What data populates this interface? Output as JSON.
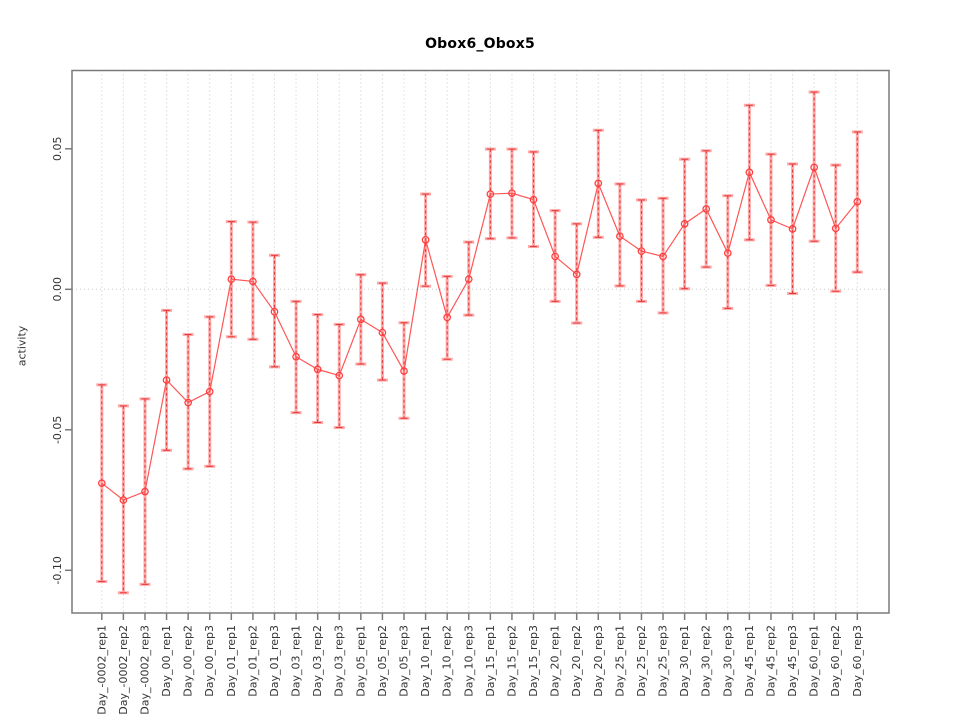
{
  "title": "Obox6_Obox5",
  "chart_data": {
    "type": "scatter",
    "title": "Obox6_Obox5",
    "xlabel": "",
    "ylabel": "activity",
    "legend": "none",
    "grid": "vertical dotted line per category; horizontal dotted line at 0 only",
    "ylim": [
      -0.115,
      0.078
    ],
    "y_ticks": [
      0.05,
      0.0,
      -0.05,
      -0.1
    ],
    "y_tick_labels": [
      "0.05",
      "0.00",
      "-0.05",
      "-0.10"
    ],
    "categories": [
      "Day_-0002_rep1",
      "Day_-0002_rep2",
      "Day_-0002_rep3",
      "Day_00_rep1",
      "Day_00_rep2",
      "Day_00_rep3",
      "Day_01_rep1",
      "Day_01_rep2",
      "Day_01_rep3",
      "Day_03_rep1",
      "Day_03_rep2",
      "Day_03_rep3",
      "Day_05_rep1",
      "Day_05_rep2",
      "Day_05_rep3",
      "Day_10_rep1",
      "Day_10_rep2",
      "Day_10_rep3",
      "Day_15_rep1",
      "Day_15_rep2",
      "Day_15_rep3",
      "Day_20_rep1",
      "Day_20_rep2",
      "Day_20_rep3",
      "Day_25_rep1",
      "Day_25_rep2",
      "Day_25_rep3",
      "Day_30_rep1",
      "Day_30_rep2",
      "Day_30_rep3",
      "Day_45_rep1",
      "Day_45_rep2",
      "Day_45_rep3",
      "Day_60_rep1",
      "Day_60_rep2",
      "Day_60_rep3"
    ],
    "series": [
      {
        "name": "activity",
        "values": [
          -0.069,
          -0.075,
          -0.072,
          -0.0323,
          -0.0403,
          -0.0364,
          0.0036,
          0.0028,
          -0.008,
          -0.024,
          -0.0285,
          -0.0307,
          -0.0107,
          -0.0154,
          -0.0291,
          0.0176,
          -0.01,
          0.0036,
          0.0339,
          0.0342,
          0.0319,
          0.0117,
          0.0053,
          0.0377,
          0.0189,
          0.0136,
          0.0117,
          0.0233,
          0.0286,
          0.0129,
          0.0416,
          0.0247,
          0.0215,
          0.0434,
          0.0217,
          0.0312
        ],
        "error_lower": [
          -0.104,
          -0.108,
          -0.105,
          -0.0573,
          -0.0639,
          -0.063,
          -0.0169,
          -0.0178,
          -0.0276,
          -0.0439,
          -0.0474,
          -0.0492,
          -0.0266,
          -0.0323,
          -0.0459,
          0.0011,
          -0.0249,
          -0.0092,
          0.018,
          0.0183,
          0.0152,
          -0.0043,
          -0.012,
          0.0185,
          0.0012,
          -0.0043,
          -0.0084,
          0.0002,
          0.0079,
          -0.0068,
          0.0176,
          0.0014,
          -0.0015,
          0.0171,
          -0.0007,
          0.0061
        ],
        "error_upper": [
          -0.034,
          -0.0415,
          -0.039,
          -0.0075,
          -0.0161,
          -0.0098,
          0.0241,
          0.0239,
          0.0121,
          -0.0043,
          -0.009,
          -0.0125,
          0.0052,
          0.0022,
          -0.0119,
          0.0339,
          0.0046,
          0.0168,
          0.0499,
          0.0499,
          0.0489,
          0.028,
          0.0233,
          0.0566,
          0.0375,
          0.0318,
          0.0324,
          0.0463,
          0.0493,
          0.0333,
          0.0655,
          0.0481,
          0.0446,
          0.0702,
          0.0442,
          0.056
        ]
      }
    ],
    "colors": {
      "point": "#ff4040",
      "line": "#ff5555",
      "error_bar_outer": "#ffa8a8",
      "error_bar_inner": "#e23838",
      "frame": "#7a7a7a",
      "grid": "#c9c9c9",
      "text": "#333333",
      "background": "#ffffff"
    }
  }
}
